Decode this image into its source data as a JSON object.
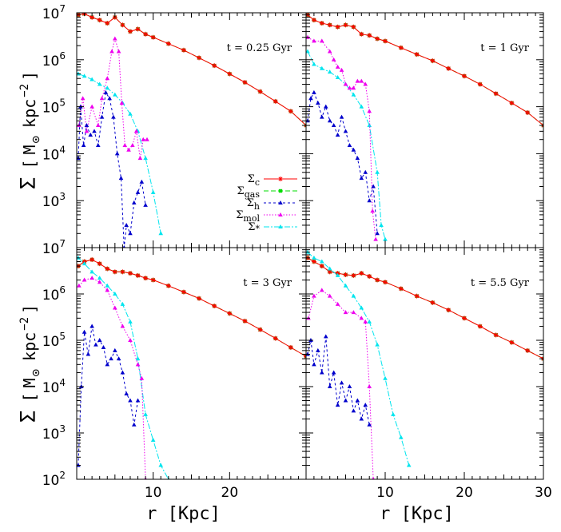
{
  "chart_data": {
    "type": "line",
    "xlabel": "r  [Kpc]",
    "ylabel_parts": [
      "Σ",
      "[",
      "M",
      "⊙",
      "kpc",
      "−2",
      "]"
    ],
    "xlim": [
      0,
      30
    ],
    "ylim": [
      100,
      10000000
    ],
    "log_y": true,
    "x_ticks": [
      10,
      20,
      30
    ],
    "x_tick_labels": [
      "10",
      "20",
      "30"
    ],
    "y_ticks": [
      100,
      1000,
      10000,
      100000,
      1000000,
      10000000
    ],
    "y_tick_labels": [
      {
        "base": "10",
        "exp": "2"
      },
      {
        "base": "10",
        "exp": "3"
      },
      {
        "base": "10",
        "exp": "4"
      },
      {
        "base": "10",
        "exp": "5"
      },
      {
        "base": "10",
        "exp": "6"
      },
      {
        "base": "10",
        "exp": "7"
      }
    ],
    "series_colors": {
      "sigma_c": "#ff0000",
      "sigma_gas": "#00dd00",
      "sigma_h": "#0000cc",
      "sigma_mol": "#ee00ee",
      "sigma_star": "#00e5ee"
    },
    "legend": [
      {
        "key": "sigma_c",
        "main": "Σ",
        "sub": "c",
        "sup": ""
      },
      {
        "key": "sigma_gas",
        "main": "Σ",
        "sub": "gas",
        "sup": ""
      },
      {
        "key": "sigma_h",
        "main": "Σ",
        "sub": "h",
        "sup": ""
      },
      {
        "key": "sigma_mol",
        "main": "Σ",
        "sub": "mol",
        "sup": ""
      },
      {
        "key": "sigma_star",
        "main": "Σ",
        "sub": "",
        "sup": "*"
      }
    ],
    "panels": [
      {
        "label": "t = 0.25 Gyr",
        "series": [
          {
            "key": "sigma_gas",
            "x": [
              0.2,
              1,
              2,
              3,
              4,
              5,
              6,
              7,
              8,
              9,
              10,
              12,
              14,
              16,
              18,
              20,
              22,
              24,
              26,
              28,
              30
            ],
            "y": [
              9000000,
              9500000,
              8000000,
              7000000,
              6000000,
              8000000,
              5500000,
              4000000,
              4500000,
              3500000,
              3000000,
              2200000,
              1600000,
              1100000,
              750000,
              500000,
              330000,
              210000,
              130000,
              80000,
              40000
            ]
          },
          {
            "key": "sigma_c",
            "x": [
              0.2,
              1,
              2,
              3,
              4,
              5,
              6,
              7,
              8,
              9,
              10,
              12,
              14,
              16,
              18,
              20,
              22,
              24,
              26,
              28,
              30
            ],
            "y": [
              9000000,
              9500000,
              8000000,
              7000000,
              6000000,
              8000000,
              5500000,
              4000000,
              4500000,
              3500000,
              3000000,
              2200000,
              1600000,
              1100000,
              750000,
              500000,
              330000,
              210000,
              130000,
              80000,
              40000
            ]
          },
          {
            "key": "sigma_star",
            "x": [
              0.2,
              1,
              2,
              3,
              4,
              5,
              6,
              7,
              8,
              9,
              10,
              11
            ],
            "y": [
              500000,
              450000,
              380000,
              300000,
              250000,
              180000,
              120000,
              70000,
              30000,
              8000,
              1500,
              200
            ]
          },
          {
            "key": "sigma_mol",
            "x": [
              0.3,
              0.8,
              1.3,
              2,
              2.8,
              3.3,
              4,
              4.6,
              5,
              5.5,
              5.9,
              6.3,
              6.8,
              7.3,
              7.8,
              8.3,
              8.7,
              9.2
            ],
            "y": [
              40000,
              150000,
              30000,
              100000,
              40000,
              150000,
              400000,
              1500000,
              2800000,
              1500000,
              120000,
              15000,
              12000,
              15000,
              30000,
              8000,
              20000,
              20000
            ]
          },
          {
            "key": "sigma_h",
            "x": [
              0.2,
              0.5,
              0.9,
              1.3,
              1.8,
              2.3,
              2.8,
              3.3,
              3.8,
              4.3,
              4.8,
              5.3,
              5.8,
              6.2,
              6.5,
              7,
              7.5,
              8,
              8.5,
              9
            ],
            "y": [
              8000,
              100000,
              15000,
              40000,
              25000,
              30000,
              15000,
              60000,
              200000,
              150000,
              60000,
              10000,
              3000,
              100,
              300,
              200,
              900,
              1500,
              2500,
              800
            ]
          }
        ]
      },
      {
        "label": "t = 1 Gyr",
        "series": [
          {
            "key": "sigma_gas",
            "x": [
              0.2,
              1,
              2,
              3,
              4,
              5,
              6,
              7,
              8,
              9,
              10,
              12,
              14,
              16,
              18,
              20,
              22,
              24,
              26,
              28,
              30
            ],
            "y": [
              9000000,
              7000000,
              6000000,
              5500000,
              5000000,
              5500000,
              5000000,
              3500000,
              3300000,
              2800000,
              2500000,
              1800000,
              1300000,
              950000,
              650000,
              450000,
              300000,
              190000,
              120000,
              75000,
              40000
            ]
          },
          {
            "key": "sigma_c",
            "x": [
              0.2,
              1,
              2,
              3,
              4,
              5,
              6,
              7,
              8,
              9,
              10,
              12,
              14,
              16,
              18,
              20,
              22,
              24,
              26,
              28,
              30
            ],
            "y": [
              9000000,
              7000000,
              6000000,
              5500000,
              5000000,
              5500000,
              5000000,
              3500000,
              3300000,
              2800000,
              2500000,
              1800000,
              1300000,
              950000,
              650000,
              450000,
              300000,
              190000,
              120000,
              75000,
              40000
            ]
          },
          {
            "key": "sigma_star",
            "x": [
              0.2,
              1,
              2,
              3,
              4,
              5,
              6,
              7,
              8,
              9,
              9.5,
              10
            ],
            "y": [
              1500000,
              800000,
              650000,
              550000,
              420000,
              300000,
              180000,
              100000,
              40000,
              4000,
              300,
              150
            ]
          },
          {
            "key": "sigma_mol",
            "x": [
              0.2,
              1,
              2,
              3,
              3.5,
              4,
              4.5,
              5,
              5.5,
              6,
              6.5,
              7,
              7.5,
              8,
              8.4,
              8.8
            ],
            "y": [
              3000000,
              2500000,
              2500000,
              1500000,
              1000000,
              700000,
              600000,
              300000,
              250000,
              250000,
              350000,
              350000,
              300000,
              80000,
              600,
              150
            ]
          },
          {
            "key": "sigma_h",
            "x": [
              0.2,
              0.6,
              1,
              1.5,
              2,
              2.5,
              3,
              3.5,
              4,
              4.5,
              5,
              5.5,
              6,
              6.5,
              7,
              7.5,
              8,
              8.5,
              9
            ],
            "y": [
              50000,
              150000,
              200000,
              120000,
              60000,
              100000,
              50000,
              40000,
              25000,
              60000,
              30000,
              15000,
              12000,
              8000,
              3000,
              4000,
              1000,
              2000,
              200
            ]
          }
        ]
      },
      {
        "label": "t = 3 Gyr",
        "series": [
          {
            "key": "sigma_gas",
            "x": [
              0.2,
              1,
              2,
              3,
              4,
              5,
              6,
              7,
              8,
              9,
              10,
              12,
              14,
              16,
              18,
              20,
              22,
              24,
              26,
              28,
              30
            ],
            "y": [
              4000000,
              5000000,
              5500000,
              4500000,
              3500000,
              3000000,
              3000000,
              2800000,
              2500000,
              2200000,
              2000000,
              1500000,
              1100000,
              800000,
              550000,
              380000,
              260000,
              170000,
              110000,
              70000,
              45000
            ]
          },
          {
            "key": "sigma_c",
            "x": [
              0.2,
              1,
              2,
              3,
              4,
              5,
              6,
              7,
              8,
              9,
              10,
              12,
              14,
              16,
              18,
              20,
              22,
              24,
              26,
              28,
              30
            ],
            "y": [
              4000000,
              5000000,
              5500000,
              4500000,
              3500000,
              3000000,
              3000000,
              2800000,
              2500000,
              2200000,
              2000000,
              1500000,
              1100000,
              800000,
              550000,
              380000,
              260000,
              170000,
              110000,
              70000,
              45000
            ]
          },
          {
            "key": "sigma_star",
            "x": [
              0.2,
              1,
              2,
              3,
              4,
              5,
              6,
              7,
              8,
              9,
              10,
              11,
              12
            ],
            "y": [
              6000000,
              4500000,
              3000000,
              2200000,
              1500000,
              1000000,
              600000,
              250000,
              40000,
              2500,
              700,
              200,
              100
            ]
          },
          {
            "key": "sigma_mol",
            "x": [
              0.3,
              1,
              2,
              3,
              4,
              5,
              6,
              7,
              8,
              8.5,
              9
            ],
            "y": [
              1500000,
              2000000,
              2200000,
              1800000,
              1200000,
              500000,
              200000,
              100000,
              30000,
              15000,
              100
            ]
          },
          {
            "key": "sigma_h",
            "x": [
              0.2,
              0.6,
              1,
              1.5,
              2,
              2.5,
              3,
              3.5,
              4,
              4.5,
              5,
              5.5,
              6,
              6.5,
              7,
              7.5,
              8
            ],
            "y": [
              200,
              10000,
              150000,
              50000,
              200000,
              80000,
              100000,
              70000,
              30000,
              40000,
              60000,
              40000,
              20000,
              7000,
              5000,
              1500,
              5000
            ]
          }
        ]
      },
      {
        "label": "t = 5.5 Gyr",
        "series": [
          {
            "key": "sigma_gas",
            "x": [
              0.2,
              1,
              2,
              3,
              4,
              5,
              6,
              7,
              8,
              9,
              10,
              12,
              14,
              16,
              18,
              20,
              22,
              24,
              26,
              28,
              30
            ],
            "y": [
              6000000,
              5000000,
              4000000,
              3000000,
              2800000,
              2600000,
              2500000,
              2800000,
              2400000,
              2000000,
              1800000,
              1300000,
              900000,
              650000,
              450000,
              300000,
              200000,
              130000,
              90000,
              60000,
              40000
            ]
          },
          {
            "key": "sigma_c",
            "x": [
              0.2,
              1,
              2,
              3,
              4,
              5,
              6,
              7,
              8,
              9,
              10,
              12,
              14,
              16,
              18,
              20,
              22,
              24,
              26,
              28,
              30
            ],
            "y": [
              6000000,
              5000000,
              4000000,
              3000000,
              2800000,
              2600000,
              2500000,
              2800000,
              2400000,
              2000000,
              1800000,
              1300000,
              900000,
              650000,
              450000,
              300000,
              200000,
              130000,
              90000,
              60000,
              40000
            ]
          },
          {
            "key": "sigma_star",
            "x": [
              0.2,
              1,
              2,
              3,
              4,
              5,
              6,
              7,
              8,
              9,
              10,
              11,
              12,
              13
            ],
            "y": [
              8000000,
              6000000,
              5000000,
              3500000,
              2500000,
              1500000,
              900000,
              500000,
              250000,
              80000,
              15000,
              2500,
              800,
              200
            ]
          },
          {
            "key": "sigma_mol",
            "x": [
              0.3,
              1,
              2,
              3,
              4,
              5,
              6,
              7,
              7.5,
              8,
              8.5
            ],
            "y": [
              300000,
              900000,
              1200000,
              900000,
              600000,
              400000,
              400000,
              300000,
              250000,
              10000,
              100
            ]
          },
          {
            "key": "sigma_h",
            "x": [
              0.2,
              0.6,
              1,
              1.5,
              2,
              2.5,
              3,
              3.5,
              4,
              4.5,
              5,
              5.5,
              6,
              6.5,
              7,
              7.5,
              8
            ],
            "y": [
              50000,
              100000,
              30000,
              60000,
              20000,
              120000,
              10000,
              20000,
              4000,
              12000,
              5000,
              10000,
              3000,
              5000,
              2000,
              4000,
              1500
            ]
          }
        ]
      }
    ]
  }
}
